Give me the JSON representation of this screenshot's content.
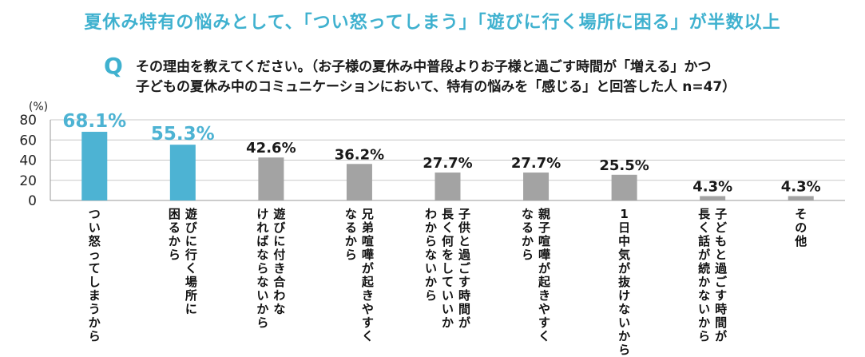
{
  "headline": "夏休み特有の悩みとして、「つい怒ってしまう」「遊びに行く場所に困る」が半数以上",
  "question": {
    "mark": "Q",
    "line1": "その理由を教えてください。（お子様の夏休み中普段よりお子様と過ごす時間が「増える」かつ",
    "line2": "子どもの夏休み中のコミュニケーションにおいて、特有の悩みを「感じる」と回答した人 n=47）"
  },
  "chart_data": {
    "type": "bar",
    "yunit": "(%)",
    "ylim": [
      0,
      80
    ],
    "yticks": [
      "80",
      "60",
      "40",
      "20",
      "0"
    ],
    "grid": true,
    "categories": [
      "つい怒ってしまうから",
      "遊びに行く場所に困るから",
      "遊びに付き合わなければならないから",
      "兄弟喧嘩が起きやすくなるから",
      "子供と過ごす時間が長く何をしていいかわからないから",
      "親子喧嘩が起きやすくなるから",
      "1日中気が抜けないから",
      "子どもと過ごす時間が長く話が続かないから",
      "その他"
    ],
    "values": [
      68.1,
      55.3,
      42.6,
      36.2,
      27.7,
      27.7,
      25.5,
      4.3,
      4.3
    ],
    "value_labels": [
      "68.1%",
      "55.3%",
      "42.6%",
      "36.2%",
      "27.7%",
      "27.7%",
      "25.5%",
      "4.3%",
      "4.3%"
    ],
    "category_columns": [
      [
        "つい怒ってしまうから"
      ],
      [
        "遊びに行く場所に",
        "困るから"
      ],
      [
        "遊びに付き合わな",
        "ければならないから"
      ],
      [
        "兄弟喧嘩が起きやすく",
        "なるから"
      ],
      [
        "子供と過ごす時間が",
        "長く何をしていいか",
        "わからないから"
      ],
      [
        "親子喧嘩が起きやすく",
        "なるから"
      ],
      [
        "1日中気が抜けないから"
      ],
      [
        "子どもと過ごす時間が",
        "長く話が続かないから"
      ],
      [
        "その他"
      ]
    ],
    "colors": {
      "highlight": "#4db3d3",
      "normal": "#a3a3a3",
      "highlight_label": "#4db3d3",
      "normal_label": "#1a1a1a",
      "grid": "#c8c8c8"
    },
    "highlighted": [
      true,
      true,
      false,
      false,
      false,
      false,
      false,
      false,
      false
    ]
  }
}
